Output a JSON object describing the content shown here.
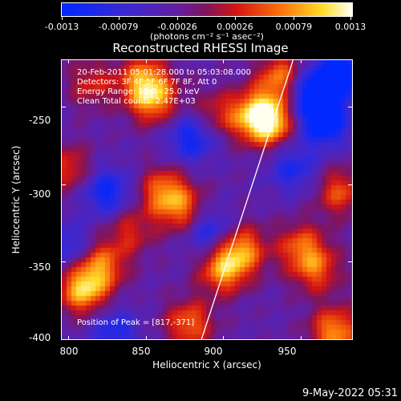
{
  "colorbar": {
    "ticks": [
      "-0.0013",
      "-0.00079",
      "-0.00026",
      "0.00026",
      "0.00079",
      "0.0013"
    ],
    "units": "(photons cm⁻² s⁻¹ asec⁻²)"
  },
  "plot": {
    "title": "Reconstructed RHESSI Image",
    "info_lines": [
      "20-Feb-2011 05:01:28.000 to 05:03:08.000",
      "Detectors: 3F 4F 5F 6F 7F 8F, Att 0",
      "Energy Range: 12.0 - 25.0 keV",
      "Clean     Total counts: 2.47E+03"
    ],
    "peak_label": "Position of Peak = [817,-371]",
    "x_axis": {
      "label": "Heliocentric X (arcsec)",
      "ticks": [
        "800",
        "850",
        "900",
        "950"
      ],
      "range": [
        796,
        983
      ]
    },
    "y_axis": {
      "label": "Heliocentric Y (arcsec)",
      "ticks": [
        "-250",
        "-300",
        "-350",
        "-400"
      ],
      "range": [
        -400,
        -220
      ]
    },
    "limb_line": {
      "x1": 886,
      "y1": -400,
      "x2": 945,
      "y2": -220
    },
    "blobs": [
      {
        "x": 810,
        "y": -368,
        "v": 0.0013
      },
      {
        "x": 822,
        "y": -352,
        "v": 0.0009
      },
      {
        "x": 930,
        "y": -260,
        "v": 0.0013
      },
      {
        "x": 938,
        "y": -232,
        "v": 0.0011
      },
      {
        "x": 920,
        "y": -255,
        "v": 0.001
      },
      {
        "x": 900,
        "y": -355,
        "v": 0.0011
      },
      {
        "x": 912,
        "y": -342,
        "v": 0.001
      },
      {
        "x": 862,
        "y": -305,
        "v": 0.001
      },
      {
        "x": 875,
        "y": -318,
        "v": 0.0008
      },
      {
        "x": 855,
        "y": -245,
        "v": 0.0011
      },
      {
        "x": 848,
        "y": -232,
        "v": 0.0009
      },
      {
        "x": 878,
        "y": -390,
        "v": 0.0009
      },
      {
        "x": 950,
        "y": -340,
        "v": 0.0008
      },
      {
        "x": 972,
        "y": -395,
        "v": 0.0011
      },
      {
        "x": 975,
        "y": -305,
        "v": 0.0008
      },
      {
        "x": 800,
        "y": -290,
        "v": 0.0007
      },
      {
        "x": 815,
        "y": -235,
        "v": 0.0006
      },
      {
        "x": 895,
        "y": -255,
        "v": 0.0006
      },
      {
        "x": 840,
        "y": -330,
        "v": 0.0006
      },
      {
        "x": 960,
        "y": -355,
        "v": 0.0008
      },
      {
        "x": 965,
        "y": -260,
        "v": -0.0012
      },
      {
        "x": 955,
        "y": -240,
        "v": -0.0011
      },
      {
        "x": 880,
        "y": -270,
        "v": -0.0009
      },
      {
        "x": 825,
        "y": -305,
        "v": -0.0009
      },
      {
        "x": 945,
        "y": -290,
        "v": -0.0007
      },
      {
        "x": 830,
        "y": -395,
        "v": -0.0007
      },
      {
        "x": 890,
        "y": -330,
        "v": -0.0008
      },
      {
        "x": 800,
        "y": -340,
        "v": -0.0006
      },
      {
        "x": 975,
        "y": -230,
        "v": -0.0012
      }
    ]
  },
  "date_stamp": "9-May-2022 05:31"
}
